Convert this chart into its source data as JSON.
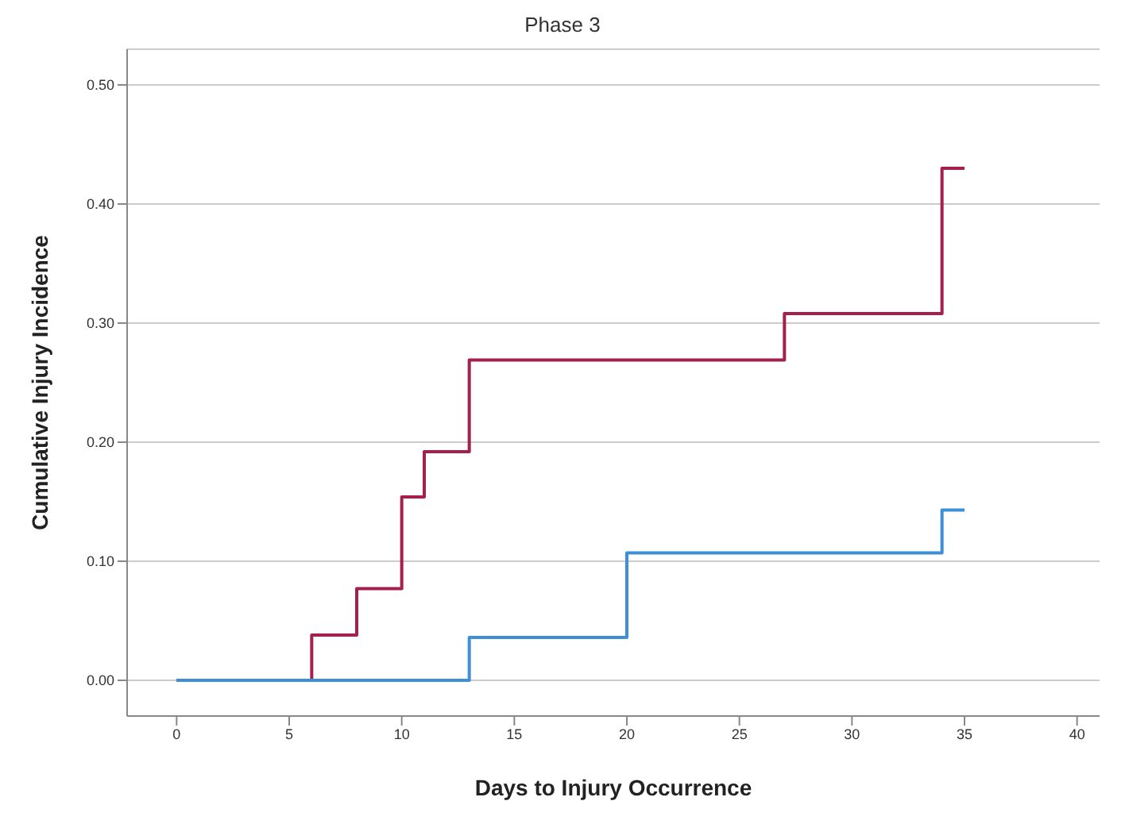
{
  "chart_data": {
    "type": "step",
    "title": "Phase 3",
    "xlabel": "Days to Injury Occurrence",
    "ylabel": "Cumulative Injury Incidence",
    "series": [
      {
        "color": "#a3204f",
        "x": [
          0,
          6,
          8,
          10,
          11,
          13,
          27,
          34,
          35
        ],
        "values": [
          0,
          0.038,
          0.077,
          0.154,
          0.192,
          0.269,
          0.308,
          0.43,
          0.43
        ]
      },
      {
        "color": "#3d8fd6",
        "x": [
          0,
          13,
          20,
          34,
          35
        ],
        "values": [
          0,
          0.036,
          0.107,
          0.143,
          0.143
        ]
      }
    ],
    "xlim": [
      -2.2,
      41
    ],
    "xticks": [
      0,
      5,
      10,
      15,
      20,
      25,
      30,
      35,
      40
    ],
    "ylim": [
      -0.03,
      0.53
    ],
    "yticks": [
      {
        "value": 0,
        "label": "0.00"
      },
      {
        "value": 0.1,
        "label": "0.10"
      },
      {
        "value": 0.2,
        "label": "0.20"
      },
      {
        "value": 0.3,
        "label": "0.30"
      },
      {
        "value": 0.4,
        "label": "0.40"
      },
      {
        "value": 0.5,
        "label": "0.50"
      }
    ],
    "grid": "y",
    "marker": "none",
    "line_style": "solid"
  }
}
